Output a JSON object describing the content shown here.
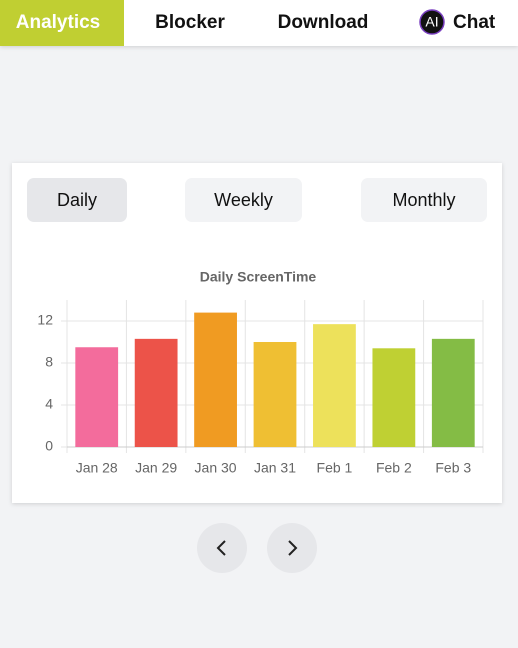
{
  "nav": {
    "items": [
      "Analytics",
      "Blocker",
      "Download",
      "Chat"
    ],
    "chat_icon": "AI"
  },
  "period_buttons": [
    "Daily",
    "Weekly",
    "Monthly"
  ],
  "chart_data": {
    "type": "bar",
    "title": "Daily ScreenTime",
    "categories": [
      "Jan 28",
      "Jan 29",
      "Jan 30",
      "Jan 31",
      "Feb 1",
      "Feb 2",
      "Feb 3"
    ],
    "values": [
      9.5,
      10.3,
      12.8,
      10.0,
      11.7,
      9.4,
      10.3
    ],
    "colors": [
      "#f36c9c",
      "#ec5349",
      "#f09b22",
      "#efbf33",
      "#ede15b",
      "#bfd033",
      "#84bc45"
    ],
    "ylim": [
      0,
      14
    ],
    "yticks": [
      0,
      4,
      8,
      12
    ],
    "grid": true
  }
}
